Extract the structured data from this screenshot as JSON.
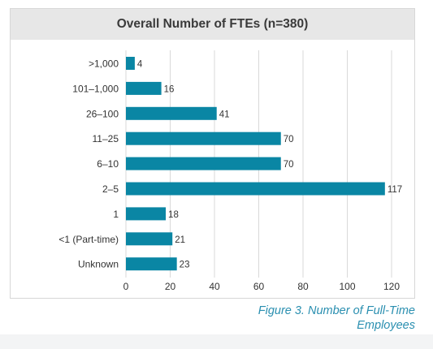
{
  "caption": "Figure 3. Number of Full-Time Employees",
  "colors": {
    "bar": "#0a86a4",
    "grid": "#d9d9d9",
    "axis_text": "#333333",
    "header_bg": "#e7e7e7",
    "caption": "#2a8fb0"
  },
  "chart_data": {
    "type": "bar",
    "orientation": "horizontal",
    "title": "Overall Number of FTEs (n=380)",
    "categories": [
      ">1,000",
      "101–1,000",
      "26–100",
      "11–25",
      "6–10",
      "2–5",
      "1",
      "<1 (Part-time)",
      "Unknown"
    ],
    "values": [
      4,
      16,
      41,
      70,
      70,
      117,
      18,
      21,
      23
    ],
    "xlim": [
      0,
      120
    ],
    "xticks": [
      0,
      20,
      40,
      60,
      80,
      100,
      120
    ],
    "grid": true,
    "data_labels": true
  }
}
